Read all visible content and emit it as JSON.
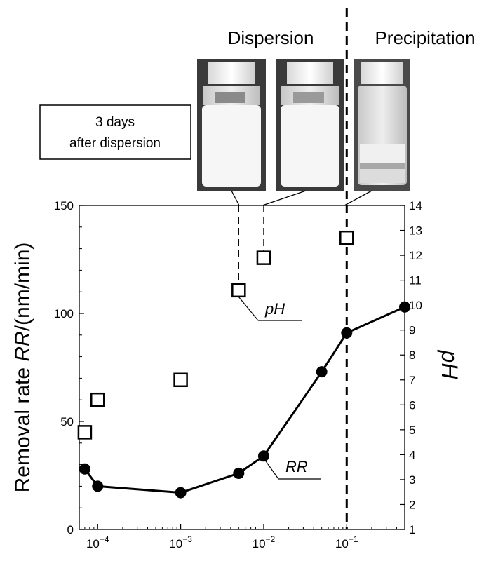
{
  "chart_data": {
    "type": "scatter",
    "title": "",
    "x_scale": "log",
    "xlim": [
      6e-05,
      0.5
    ],
    "x_ticks": [
      0.0001,
      0.001,
      0.01,
      0.1
    ],
    "x_tick_labels": [
      {
        "base": "10",
        "exp": "−4"
      },
      {
        "base": "10",
        "exp": "−3"
      },
      {
        "base": "10",
        "exp": "−2"
      },
      {
        "base": "10",
        "exp": "−1"
      }
    ],
    "y_left": {
      "label_main": "Removal rate ",
      "label_italic": "RR",
      "label_unit": "/(nm/min)",
      "ylim": [
        0,
        150
      ],
      "ticks": [
        0,
        50,
        100,
        150
      ]
    },
    "y_right": {
      "label": "pH",
      "ylim": [
        1,
        14
      ],
      "ticks": [
        1,
        2,
        3,
        4,
        5,
        6,
        7,
        8,
        9,
        10,
        11,
        12,
        13,
        14
      ]
    },
    "series": [
      {
        "name": "RR",
        "axis": "left",
        "style": "line-filled-circle",
        "points": [
          {
            "x": 7e-05,
            "y": 28
          },
          {
            "x": 0.0001,
            "y": 20
          },
          {
            "x": 0.001,
            "y": 17
          },
          {
            "x": 0.005,
            "y": 26
          },
          {
            "x": 0.01,
            "y": 34
          },
          {
            "x": 0.05,
            "y": 73
          },
          {
            "x": 0.1,
            "y": 91
          },
          {
            "x": 0.5,
            "y": 103
          }
        ]
      },
      {
        "name": "pH",
        "axis": "right",
        "style": "open-square",
        "points": [
          {
            "x": 7e-05,
            "y": 4.9
          },
          {
            "x": 0.0001,
            "y": 6.2
          },
          {
            "x": 0.001,
            "y": 7.0
          },
          {
            "x": 0.005,
            "y": 10.6
          },
          {
            "x": 0.01,
            "y": 11.9
          },
          {
            "x": 0.1,
            "y": 12.7
          }
        ]
      }
    ],
    "vertical_boundary_x": 0.1,
    "annotations": {
      "dispersion": "Dispersion",
      "precipitation": "Precipitation",
      "box_line1": "3 days",
      "box_line2": "after dispersion",
      "ph_series_label": "pH",
      "rr_series_label": "RR"
    },
    "photos": [
      {
        "state": "dispersion",
        "points_to_x": 0.005
      },
      {
        "state": "dispersion",
        "points_to_x": 0.01
      },
      {
        "state": "precipitation",
        "points_to_x": 0.1
      }
    ],
    "grid": false,
    "legend": "none"
  }
}
